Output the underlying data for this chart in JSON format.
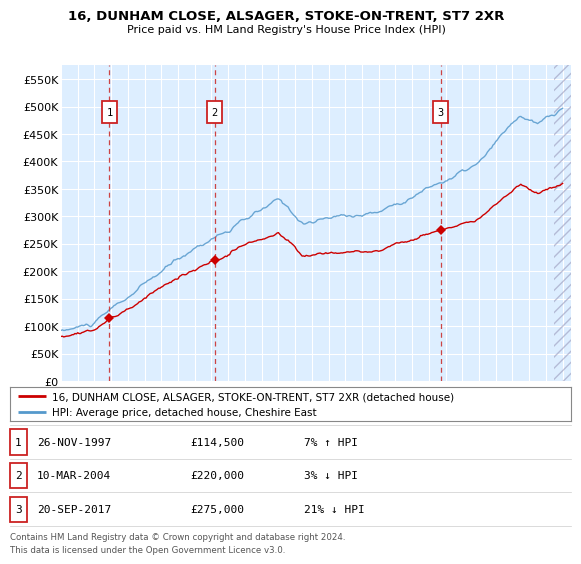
{
  "title1": "16, DUNHAM CLOSE, ALSAGER, STOKE-ON-TRENT, ST7 2XR",
  "title2": "Price paid vs. HM Land Registry's House Price Index (HPI)",
  "legend_label_red": "16, DUNHAM CLOSE, ALSAGER, STOKE-ON-TRENT, ST7 2XR (detached house)",
  "legend_label_blue": "HPI: Average price, detached house, Cheshire East",
  "footer1": "Contains HM Land Registry data © Crown copyright and database right 2024.",
  "footer2": "This data is licensed under the Open Government Licence v3.0.",
  "sale_points": [
    {
      "label": "1",
      "date": "26-NOV-1997",
      "price": 114500,
      "hpi_pct": "7% ↑ HPI",
      "x_year": 1997.9
    },
    {
      "label": "2",
      "date": "10-MAR-2004",
      "price": 220000,
      "hpi_pct": "3% ↓ HPI",
      "x_year": 2004.2
    },
    {
      "label": "3",
      "date": "20-SEP-2017",
      "price": 275000,
      "hpi_pct": "21% ↓ HPI",
      "x_year": 2017.72
    }
  ],
  "ylim": [
    0,
    575000
  ],
  "xlim_start": 1995.0,
  "xlim_end": 2025.5,
  "yticks": [
    0,
    50000,
    100000,
    150000,
    200000,
    250000,
    300000,
    350000,
    400000,
    450000,
    500000,
    550000
  ],
  "ytick_labels": [
    "£0",
    "£50K",
    "£100K",
    "£150K",
    "£200K",
    "£250K",
    "£300K",
    "£350K",
    "£400K",
    "£450K",
    "£500K",
    "£550K"
  ],
  "xticks": [
    1995,
    1996,
    1997,
    1998,
    1999,
    2000,
    2001,
    2002,
    2003,
    2004,
    2005,
    2006,
    2007,
    2008,
    2009,
    2010,
    2011,
    2012,
    2013,
    2014,
    2015,
    2016,
    2017,
    2018,
    2019,
    2020,
    2021,
    2022,
    2023,
    2024,
    2025
  ],
  "plot_bg_color": "#ddeeff",
  "grid_color": "#ffffff",
  "red_color": "#cc0000",
  "blue_color": "#5599cc",
  "dashed_line_color": "#cc4444",
  "marker_color": "#cc0000",
  "box_edge_color": "#cc2222"
}
